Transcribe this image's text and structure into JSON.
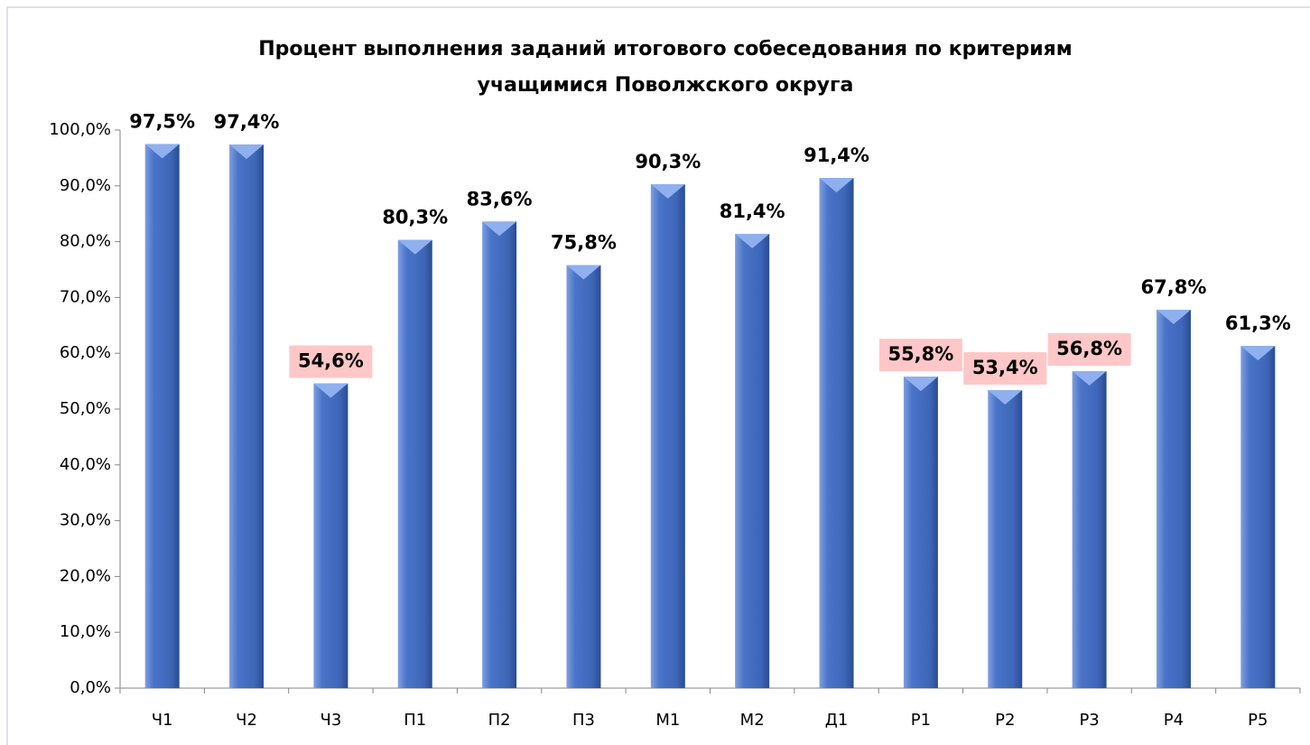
{
  "chart_data": {
    "type": "bar",
    "title": [
      "Процент выполнения заданий итогового собеседования по критериям",
      "учащимися Поволжского округа"
    ],
    "categories": [
      "Ч1",
      "Ч2",
      "Ч3",
      "П1",
      "П2",
      "П3",
      "М1",
      "М2",
      "Д1",
      "Р1",
      "Р2",
      "Р3",
      "Р4",
      "Р5"
    ],
    "values": [
      97.5,
      97.4,
      54.6,
      80.3,
      83.6,
      75.8,
      90.3,
      81.4,
      91.4,
      55.8,
      53.4,
      56.8,
      67.8,
      61.3
    ],
    "value_labels": [
      "97,5%",
      "97,4%",
      "54,6%",
      "80,3%",
      "83,6%",
      "75,8%",
      "90,3%",
      "81,4%",
      "91,4%",
      "55,8%",
      "53,4%",
      "56,8%",
      "67,8%",
      "61,3%"
    ],
    "highlighted": [
      false,
      false,
      true,
      false,
      false,
      false,
      false,
      false,
      false,
      true,
      true,
      true,
      false,
      false
    ],
    "highlight_color": "#ffc7c7",
    "color": "#4a74c9",
    "ylim": [
      0,
      100
    ],
    "yticks": [
      {
        "value": 0,
        "label": "0,0%"
      },
      {
        "value": 10,
        "label": "10,0%"
      },
      {
        "value": 20,
        "label": "20,0%"
      },
      {
        "value": 30,
        "label": "30,0%"
      },
      {
        "value": 40,
        "label": "40,0%"
      },
      {
        "value": 50,
        "label": "50,0%"
      },
      {
        "value": 60,
        "label": "60,0%"
      },
      {
        "value": 70,
        "label": "70,0%"
      },
      {
        "value": 80,
        "label": "80,0%"
      },
      {
        "value": 90,
        "label": "90,0%"
      },
      {
        "value": 100,
        "label": "100,0%"
      }
    ]
  }
}
